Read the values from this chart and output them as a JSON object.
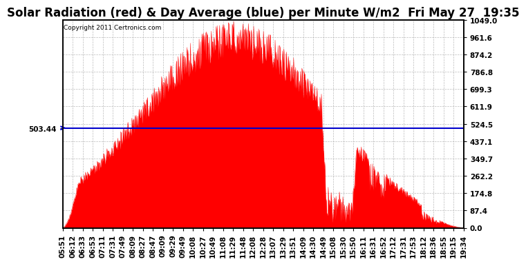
{
  "title": "Solar Radiation (red) & Day Average (blue) per Minute W/m2  Fri May 27  19:35",
  "copyright_text": "Copyright 2011 Certronics.com",
  "avg_value": 503.44,
  "y_max": 1049.0,
  "y_min": 0.0,
  "y_ticks": [
    0.0,
    87.4,
    174.8,
    262.2,
    349.7,
    437.1,
    524.5,
    611.9,
    699.3,
    786.8,
    874.2,
    961.6,
    1049.0
  ],
  "x_tick_labels": [
    "05:51",
    "06:12",
    "06:33",
    "06:53",
    "07:11",
    "07:31",
    "07:49",
    "08:09",
    "08:27",
    "08:47",
    "09:09",
    "09:29",
    "09:49",
    "10:08",
    "10:27",
    "10:49",
    "11:08",
    "11:29",
    "11:48",
    "12:08",
    "12:28",
    "13:07",
    "13:29",
    "13:51",
    "14:09",
    "14:30",
    "14:49",
    "15:08",
    "15:30",
    "15:50",
    "16:11",
    "16:31",
    "16:52",
    "17:12",
    "17:31",
    "17:53",
    "18:12",
    "18:36",
    "18:55",
    "19:15",
    "19:34"
  ],
  "fill_color": "#FF0000",
  "line_color": "#0000CC",
  "background_color": "#FFFFFF",
  "grid_color": "#AAAAAA",
  "title_fontsize": 12,
  "tick_fontsize": 7.5,
  "copyright_fontsize": 6.5
}
